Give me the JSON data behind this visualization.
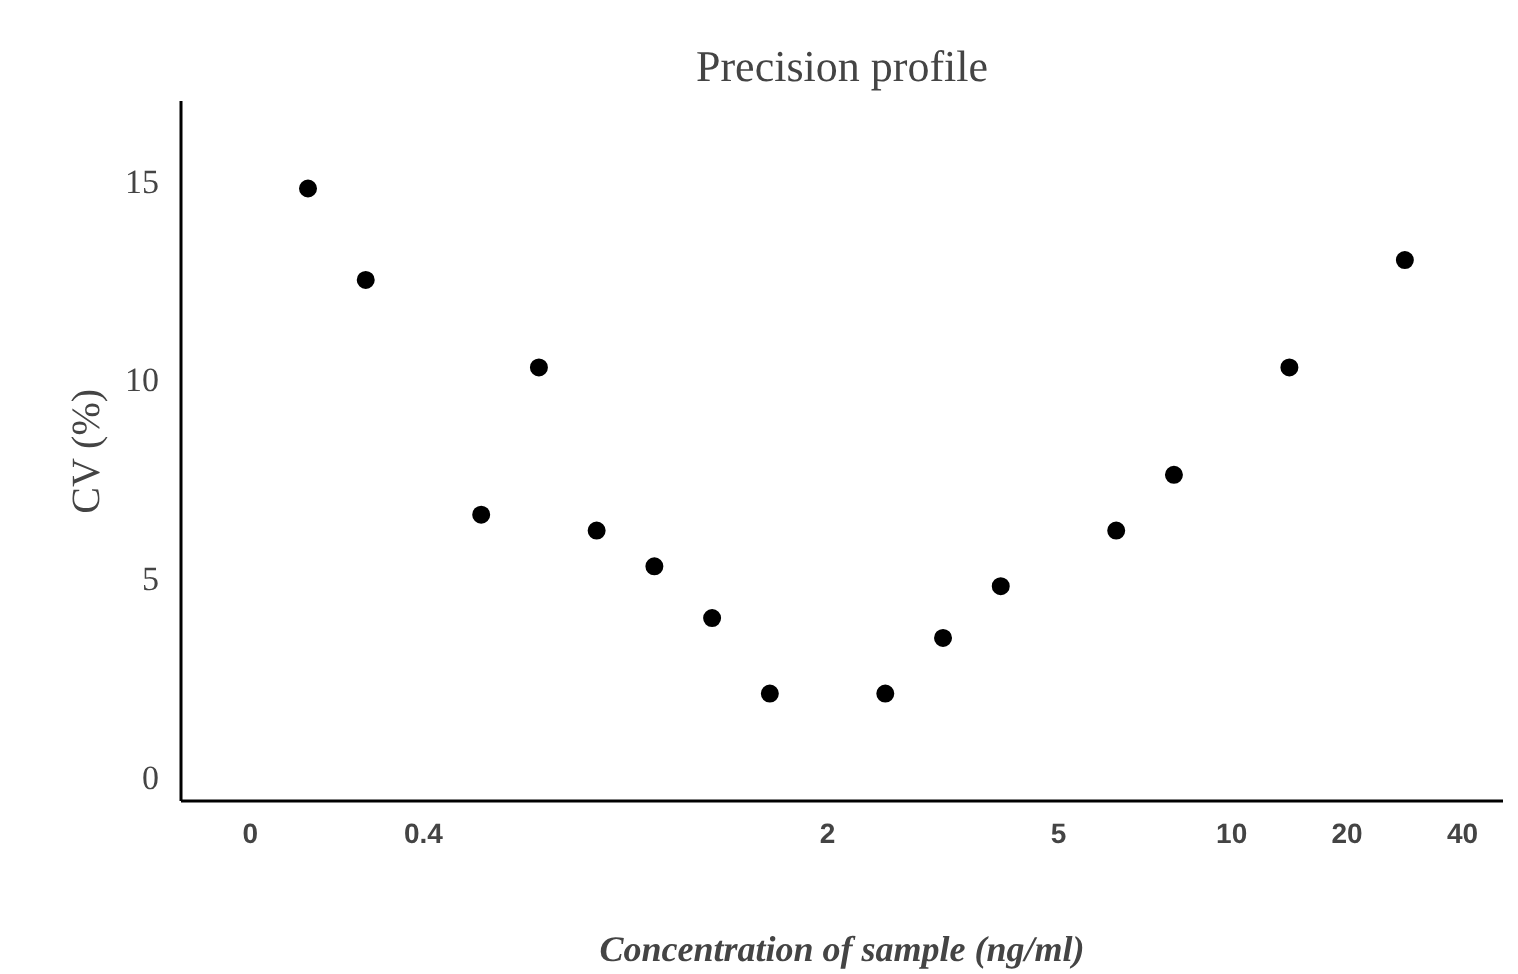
{
  "chart_data": {
    "type": "scatter",
    "title": "Precision profile",
    "xlabel": "Concentration of sample (ng/ml)",
    "ylabel": "CV (%)",
    "ylim": [
      -0.6,
      17
    ],
    "yticks": [
      0,
      5,
      10,
      15
    ],
    "categories": [
      "0",
      null,
      null,
      "0.4",
      null,
      null,
      null,
      null,
      null,
      null,
      "2",
      null,
      null,
      null,
      "5",
      null,
      null,
      "10",
      null,
      "20",
      null,
      "40"
    ],
    "series": [
      {
        "color": "#000000",
        "values": [
          null,
          14.8,
          12.5,
          null,
          6.6,
          10.3,
          6.2,
          5.3,
          4.0,
          2.1,
          null,
          2.1,
          3.5,
          4.8,
          null,
          6.2,
          7.6,
          null,
          10.3,
          null,
          13.0,
          null
        ]
      }
    ],
    "marker": "circle",
    "grid": false
  }
}
